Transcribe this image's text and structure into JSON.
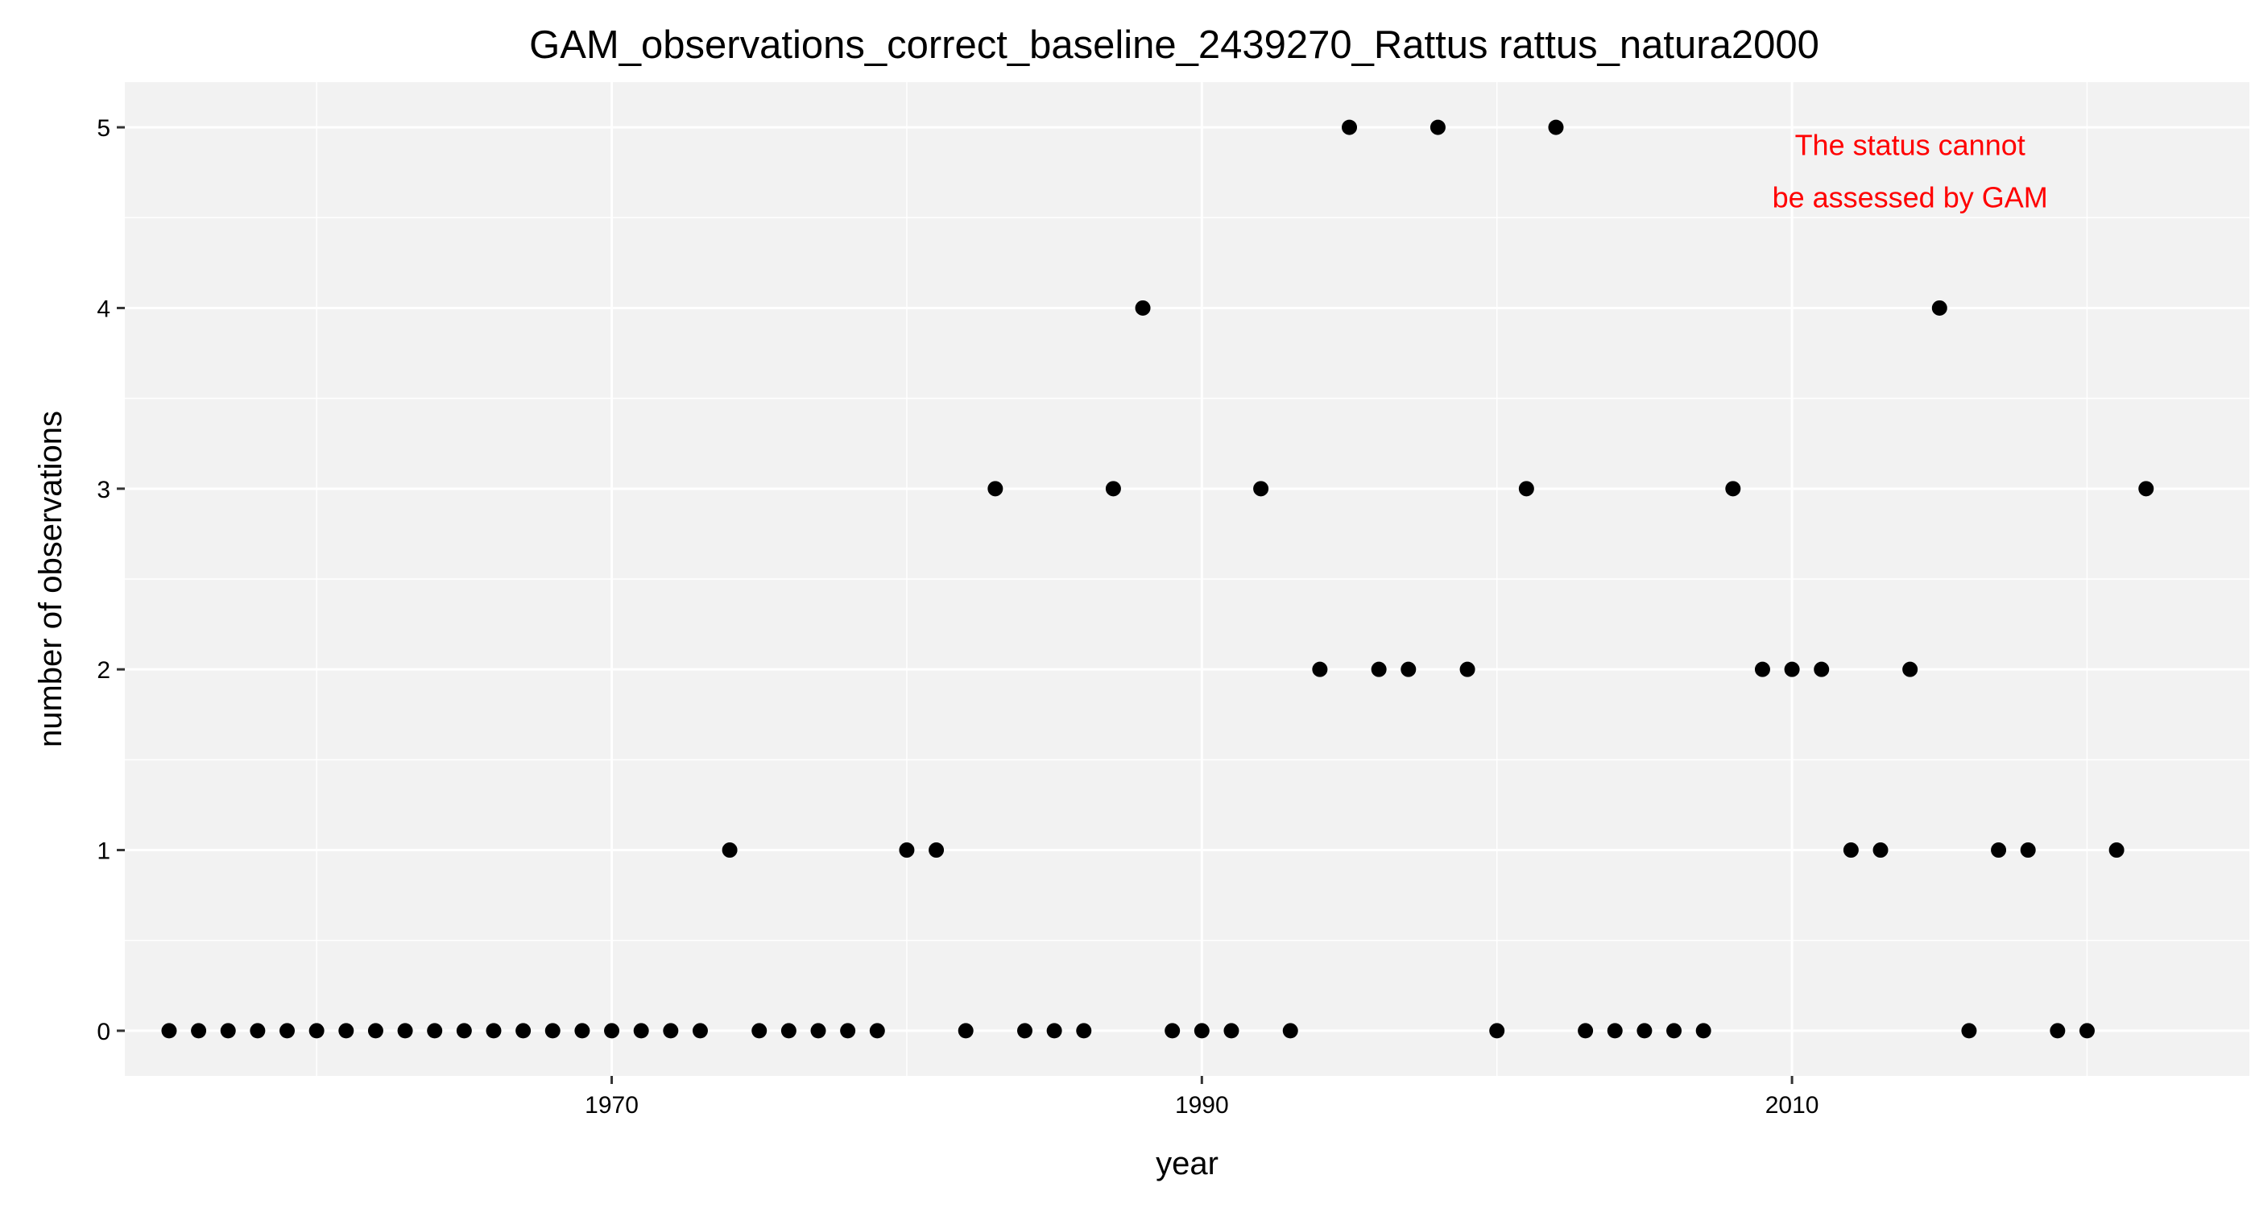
{
  "chart_data": {
    "type": "scatter",
    "title": "GAM_observations_correct_baseline_2439270_Rattus rattus_natura2000",
    "xlabel": "year",
    "ylabel": "number of observations",
    "xlim": [
      1953.5,
      2025.5
    ],
    "ylim": [
      -0.25,
      5.25
    ],
    "x_ticks": [
      1970,
      1990,
      2010
    ],
    "y_ticks": [
      0,
      1,
      2,
      3,
      4,
      5
    ],
    "grid": true,
    "panel_background": "#f2f2f2",
    "grid_color": "#ffffff",
    "point_color": "#000000",
    "annotation": {
      "lines": [
        "The status cannot",
        "be assessed by GAM"
      ],
      "color": "#ff0000",
      "position": "top-right"
    },
    "points": [
      {
        "x": 1955,
        "y": 0
      },
      {
        "x": 1956,
        "y": 0
      },
      {
        "x": 1957,
        "y": 0
      },
      {
        "x": 1958,
        "y": 0
      },
      {
        "x": 1959,
        "y": 0
      },
      {
        "x": 1960,
        "y": 0
      },
      {
        "x": 1961,
        "y": 0
      },
      {
        "x": 1962,
        "y": 0
      },
      {
        "x": 1963,
        "y": 0
      },
      {
        "x": 1964,
        "y": 0
      },
      {
        "x": 1965,
        "y": 0
      },
      {
        "x": 1966,
        "y": 0
      },
      {
        "x": 1967,
        "y": 0
      },
      {
        "x": 1968,
        "y": 0
      },
      {
        "x": 1969,
        "y": 0
      },
      {
        "x": 1970,
        "y": 0
      },
      {
        "x": 1971,
        "y": 0
      },
      {
        "x": 1972,
        "y": 0
      },
      {
        "x": 1973,
        "y": 0
      },
      {
        "x": 1974,
        "y": 1
      },
      {
        "x": 1975,
        "y": 0
      },
      {
        "x": 1976,
        "y": 0
      },
      {
        "x": 1977,
        "y": 0
      },
      {
        "x": 1978,
        "y": 0
      },
      {
        "x": 1979,
        "y": 0
      },
      {
        "x": 1980,
        "y": 1
      },
      {
        "x": 1981,
        "y": 1
      },
      {
        "x": 1982,
        "y": 0
      },
      {
        "x": 1983,
        "y": 3
      },
      {
        "x": 1984,
        "y": 0
      },
      {
        "x": 1985,
        "y": 0
      },
      {
        "x": 1986,
        "y": 0
      },
      {
        "x": 1987,
        "y": 3
      },
      {
        "x": 1988,
        "y": 4
      },
      {
        "x": 1989,
        "y": 0
      },
      {
        "x": 1990,
        "y": 0
      },
      {
        "x": 1991,
        "y": 0
      },
      {
        "x": 1992,
        "y": 3
      },
      {
        "x": 1993,
        "y": 0
      },
      {
        "x": 1994,
        "y": 2
      },
      {
        "x": 1995,
        "y": 5
      },
      {
        "x": 1996,
        "y": 2
      },
      {
        "x": 1997,
        "y": 2
      },
      {
        "x": 1998,
        "y": 5
      },
      {
        "x": 1999,
        "y": 2
      },
      {
        "x": 2000,
        "y": 0
      },
      {
        "x": 2001,
        "y": 3
      },
      {
        "x": 2002,
        "y": 5
      },
      {
        "x": 2003,
        "y": 0
      },
      {
        "x": 2004,
        "y": 0
      },
      {
        "x": 2005,
        "y": 0
      },
      {
        "x": 2006,
        "y": 0
      },
      {
        "x": 2007,
        "y": 0
      },
      {
        "x": 2008,
        "y": 3
      },
      {
        "x": 2009,
        "y": 2
      },
      {
        "x": 2010,
        "y": 2
      },
      {
        "x": 2011,
        "y": 2
      },
      {
        "x": 2012,
        "y": 1
      },
      {
        "x": 2013,
        "y": 1
      },
      {
        "x": 2014,
        "y": 2
      },
      {
        "x": 2015,
        "y": 4
      },
      {
        "x": 2016,
        "y": 0
      },
      {
        "x": 2017,
        "y": 1
      },
      {
        "x": 2018,
        "y": 1
      },
      {
        "x": 2019,
        "y": 0
      },
      {
        "x": 2020,
        "y": 0
      },
      {
        "x": 2021,
        "y": 1
      },
      {
        "x": 2022,
        "y": 3
      }
    ]
  }
}
